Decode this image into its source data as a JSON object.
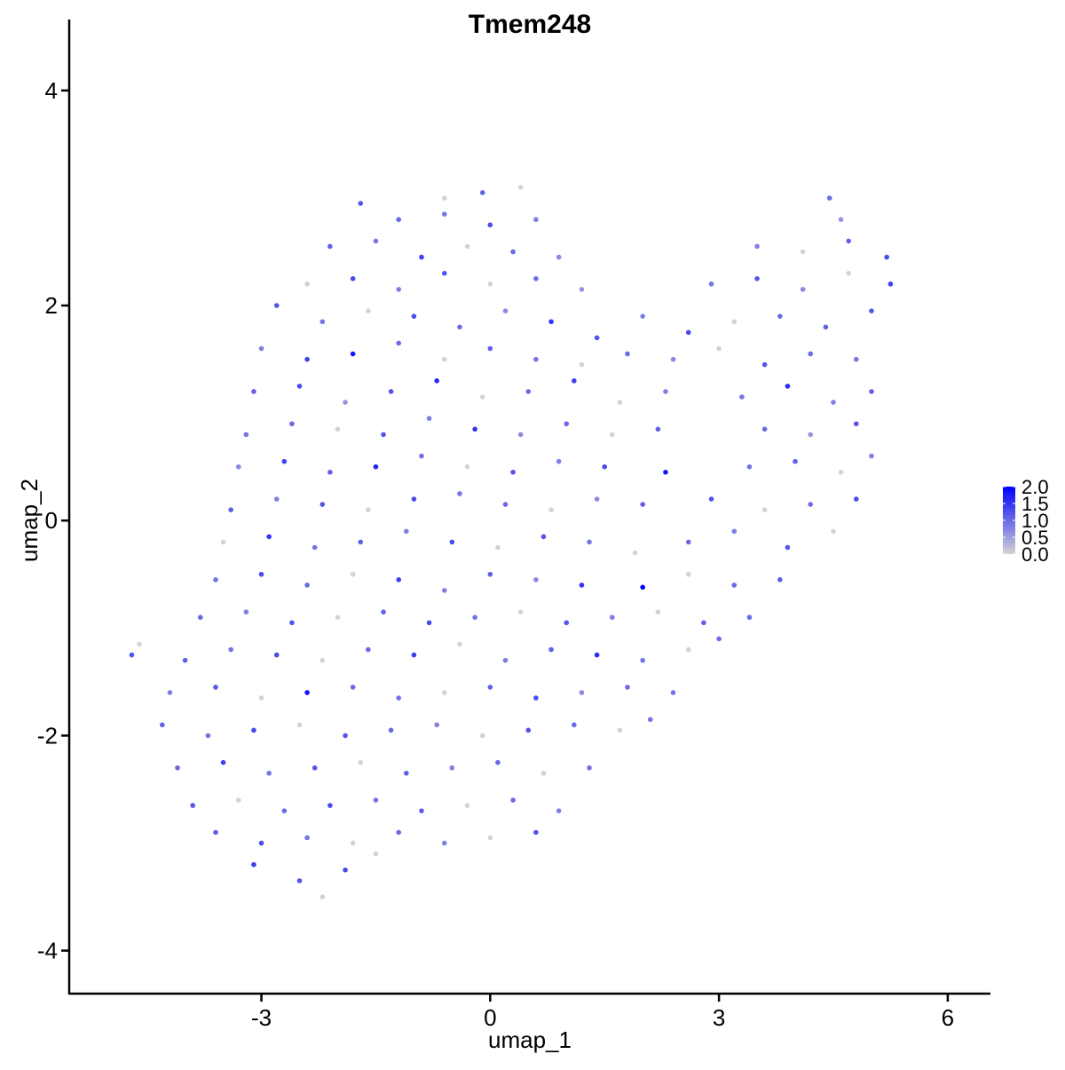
{
  "chart_data": {
    "type": "scatter",
    "title": "Tmem248",
    "xlabel": "umap_1",
    "ylabel": "umap_2",
    "xlim": [
      -5.52,
      6.56
    ],
    "ylim": [
      -4.4,
      4.66
    ],
    "xticks": [
      -3,
      0,
      3,
      6
    ],
    "yticks": [
      -4,
      -2,
      0,
      2,
      4
    ],
    "xtick_labels": [
      "-3",
      "0",
      "3",
      "6"
    ],
    "ytick_labels": [
      "-4",
      "-2",
      "0",
      "2",
      "4"
    ],
    "grid": false,
    "legend": {
      "placement": "right",
      "type": "colorbar",
      "min": 0,
      "max": 2,
      "tick_labels": [
        "2.0",
        "1.5",
        "1.0",
        "0.5",
        "0.0"
      ],
      "tick_values": [
        2.0,
        1.5,
        1.0,
        0.5,
        0.0
      ]
    },
    "colors": {
      "low": "#d3d3d3",
      "high": "#0000ff"
    },
    "point_fields": [
      "umap_1",
      "umap_2",
      "expression"
    ],
    "points": [
      [
        -0.6,
        3.0,
        0
      ],
      [
        -0.1,
        3.05,
        1.1
      ],
      [
        0.4,
        3.1,
        0
      ],
      [
        -1.7,
        2.95,
        1.2
      ],
      [
        -1.2,
        2.8,
        1.0
      ],
      [
        -0.6,
        2.85,
        0.9
      ],
      [
        0.0,
        2.75,
        1.3
      ],
      [
        0.6,
        2.8,
        0.8
      ],
      [
        4.45,
        3.0,
        1.0
      ],
      [
        4.6,
        2.8,
        0.6
      ],
      [
        -2.1,
        2.55,
        1.1
      ],
      [
        -1.5,
        2.6,
        0.9
      ],
      [
        -0.9,
        2.45,
        1.4
      ],
      [
        -0.3,
        2.55,
        0
      ],
      [
        0.3,
        2.5,
        1.0
      ],
      [
        0.9,
        2.45,
        0.7
      ],
      [
        3.5,
        2.55,
        0.8
      ],
      [
        4.1,
        2.5,
        0
      ],
      [
        4.7,
        2.6,
        1.1
      ],
      [
        5.2,
        2.45,
        1.3
      ],
      [
        -2.4,
        2.2,
        0
      ],
      [
        -1.8,
        2.25,
        1.3
      ],
      [
        -1.2,
        2.15,
        0.8
      ],
      [
        -0.6,
        2.3,
        1.2
      ],
      [
        0.0,
        2.2,
        0
      ],
      [
        0.6,
        2.25,
        1.0
      ],
      [
        1.2,
        2.15,
        0.6
      ],
      [
        2.9,
        2.2,
        0.9
      ],
      [
        3.5,
        2.25,
        1.2
      ],
      [
        4.1,
        2.15,
        0.7
      ],
      [
        4.7,
        2.3,
        0
      ],
      [
        5.25,
        2.2,
        1.4
      ],
      [
        -2.8,
        2.0,
        1.2
      ],
      [
        -2.2,
        1.85,
        0.9
      ],
      [
        -1.6,
        1.95,
        0
      ],
      [
        -1.0,
        1.9,
        1.3
      ],
      [
        -0.4,
        1.8,
        1.0
      ],
      [
        0.2,
        1.95,
        0.7
      ],
      [
        0.8,
        1.85,
        1.5
      ],
      [
        1.4,
        1.7,
        1.2
      ],
      [
        2.0,
        1.9,
        0.8
      ],
      [
        2.6,
        1.75,
        1.3
      ],
      [
        3.2,
        1.85,
        0
      ],
      [
        3.8,
        1.9,
        1.0
      ],
      [
        4.4,
        1.8,
        1.1
      ],
      [
        5.0,
        1.95,
        1.2
      ],
      [
        -3.0,
        1.6,
        0.8
      ],
      [
        -2.4,
        1.5,
        1.4
      ],
      [
        -1.8,
        1.55,
        1.8
      ],
      [
        -1.2,
        1.65,
        1.0
      ],
      [
        -0.6,
        1.5,
        0
      ],
      [
        0.0,
        1.6,
        1.1
      ],
      [
        0.6,
        1.5,
        0.9
      ],
      [
        1.2,
        1.45,
        0
      ],
      [
        1.8,
        1.55,
        1.0
      ],
      [
        2.4,
        1.5,
        0.7
      ],
      [
        3.0,
        1.6,
        0
      ],
      [
        3.6,
        1.45,
        1.2
      ],
      [
        4.2,
        1.55,
        1.0
      ],
      [
        4.8,
        1.5,
        0.9
      ],
      [
        -3.1,
        1.2,
        1.1
      ],
      [
        -2.5,
        1.25,
        1.3
      ],
      [
        -1.9,
        1.1,
        0.6
      ],
      [
        -1.3,
        1.2,
        1.2
      ],
      [
        -0.7,
        1.3,
        1.6
      ],
      [
        -0.1,
        1.15,
        0
      ],
      [
        0.5,
        1.2,
        1.0
      ],
      [
        1.1,
        1.3,
        1.4
      ],
      [
        1.7,
        1.1,
        0
      ],
      [
        2.3,
        1.2,
        0.8
      ],
      [
        3.3,
        1.15,
        0.9
      ],
      [
        3.9,
        1.25,
        1.6
      ],
      [
        4.5,
        1.1,
        0.8
      ],
      [
        5.0,
        1.2,
        1.1
      ],
      [
        -3.2,
        0.8,
        0.9
      ],
      [
        -2.6,
        0.9,
        1.0
      ],
      [
        -2.0,
        0.85,
        0
      ],
      [
        -1.4,
        0.8,
        1.2
      ],
      [
        -0.8,
        0.95,
        0.8
      ],
      [
        -0.2,
        0.85,
        1.5
      ],
      [
        0.4,
        0.8,
        0.7
      ],
      [
        1.0,
        0.9,
        1.0
      ],
      [
        1.6,
        0.8,
        0
      ],
      [
        2.2,
        0.85,
        1.1
      ],
      [
        3.6,
        0.85,
        1.0
      ],
      [
        4.2,
        0.8,
        0.6
      ],
      [
        4.8,
        0.9,
        1.2
      ],
      [
        -3.3,
        0.5,
        0.7
      ],
      [
        -2.7,
        0.55,
        1.4
      ],
      [
        -2.1,
        0.45,
        1.1
      ],
      [
        -1.5,
        0.5,
        1.7
      ],
      [
        -0.9,
        0.6,
        0.9
      ],
      [
        -0.3,
        0.5,
        0
      ],
      [
        0.3,
        0.45,
        1.2
      ],
      [
        0.9,
        0.55,
        0.8
      ],
      [
        1.5,
        0.5,
        1.3
      ],
      [
        2.3,
        0.45,
        1.8
      ],
      [
        3.4,
        0.5,
        0.9
      ],
      [
        4.0,
        0.55,
        1.1
      ],
      [
        4.6,
        0.45,
        0
      ],
      [
        5.0,
        0.6,
        0.8
      ],
      [
        -3.4,
        0.1,
        1.1
      ],
      [
        -2.8,
        0.2,
        0.8
      ],
      [
        -2.2,
        0.15,
        1.2
      ],
      [
        -1.6,
        0.1,
        0
      ],
      [
        -1.0,
        0.2,
        1.3
      ],
      [
        -0.4,
        0.25,
        0.9
      ],
      [
        0.2,
        0.15,
        1.0
      ],
      [
        0.8,
        0.1,
        0
      ],
      [
        1.4,
        0.2,
        0.7
      ],
      [
        2.0,
        0.15,
        1.1
      ],
      [
        2.9,
        0.2,
        1.2
      ],
      [
        3.6,
        0.1,
        0
      ],
      [
        4.2,
        0.15,
        1.0
      ],
      [
        4.8,
        0.2,
        1.3
      ],
      [
        -3.5,
        -0.2,
        0
      ],
      [
        -2.9,
        -0.15,
        1.5
      ],
      [
        -2.3,
        -0.25,
        0.9
      ],
      [
        -1.7,
        -0.2,
        1.1
      ],
      [
        -1.1,
        -0.1,
        0.8
      ],
      [
        -0.5,
        -0.2,
        1.3
      ],
      [
        0.1,
        -0.25,
        0
      ],
      [
        0.7,
        -0.15,
        1.2
      ],
      [
        1.3,
        -0.2,
        0.9
      ],
      [
        1.9,
        -0.3,
        0
      ],
      [
        2.6,
        -0.2,
        1.0
      ],
      [
        3.2,
        -0.1,
        0.8
      ],
      [
        3.9,
        -0.25,
        1.2
      ],
      [
        4.5,
        -0.1,
        0
      ],
      [
        -3.6,
        -0.55,
        0.9
      ],
      [
        -3.0,
        -0.5,
        1.3
      ],
      [
        -2.4,
        -0.6,
        1.0
      ],
      [
        -1.8,
        -0.5,
        0
      ],
      [
        -1.2,
        -0.55,
        1.4
      ],
      [
        -0.6,
        -0.65,
        0.8
      ],
      [
        0.0,
        -0.5,
        1.1
      ],
      [
        0.6,
        -0.55,
        0.7
      ],
      [
        1.2,
        -0.6,
        1.5
      ],
      [
        2.0,
        -0.62,
        2.0
      ],
      [
        2.6,
        -0.5,
        0
      ],
      [
        3.2,
        -0.6,
        1.0
      ],
      [
        3.8,
        -0.55,
        1.1
      ],
      [
        -3.8,
        -0.9,
        1.0
      ],
      [
        -3.2,
        -0.85,
        0.8
      ],
      [
        -2.6,
        -0.95,
        1.2
      ],
      [
        -2.0,
        -0.9,
        0
      ],
      [
        -1.4,
        -0.85,
        1.1
      ],
      [
        -0.8,
        -0.95,
        1.3
      ],
      [
        -0.2,
        -0.9,
        0.9
      ],
      [
        0.4,
        -0.85,
        0
      ],
      [
        1.0,
        -0.95,
        1.2
      ],
      [
        1.6,
        -0.9,
        0.8
      ],
      [
        2.2,
        -0.85,
        0
      ],
      [
        2.8,
        -0.95,
        1.1
      ],
      [
        3.4,
        -0.9,
        1.0
      ],
      [
        -4.7,
        -1.25,
        1.2
      ],
      [
        -4.6,
        -1.15,
        0
      ],
      [
        -4.0,
        -1.3,
        1.1
      ],
      [
        -3.4,
        -1.2,
        0.9
      ],
      [
        -2.8,
        -1.25,
        1.3
      ],
      [
        -2.2,
        -1.3,
        0
      ],
      [
        -1.6,
        -1.2,
        1.0
      ],
      [
        -1.0,
        -1.25,
        1.4
      ],
      [
        -0.4,
        -1.15,
        0
      ],
      [
        0.2,
        -1.3,
        0.8
      ],
      [
        0.8,
        -1.2,
        1.1
      ],
      [
        1.4,
        -1.25,
        1.6
      ],
      [
        2.0,
        -1.3,
        0.9
      ],
      [
        2.6,
        -1.2,
        0
      ],
      [
        3.0,
        -1.1,
        1.0
      ],
      [
        -4.2,
        -1.6,
        0.8
      ],
      [
        -3.6,
        -1.55,
        1.2
      ],
      [
        -3.0,
        -1.65,
        0
      ],
      [
        -2.4,
        -1.6,
        1.8
      ],
      [
        -1.8,
        -1.55,
        1.0
      ],
      [
        -1.2,
        -1.65,
        0.9
      ],
      [
        -0.6,
        -1.6,
        0
      ],
      [
        0.0,
        -1.55,
        1.1
      ],
      [
        0.6,
        -1.65,
        1.3
      ],
      [
        1.2,
        -1.6,
        0.7
      ],
      [
        1.8,
        -1.55,
        1.0
      ],
      [
        2.4,
        -1.6,
        0.9
      ],
      [
        -4.3,
        -1.9,
        1.1
      ],
      [
        -3.7,
        -2.0,
        0.9
      ],
      [
        -3.1,
        -1.95,
        1.3
      ],
      [
        -2.5,
        -1.9,
        0
      ],
      [
        -1.9,
        -2.0,
        1.2
      ],
      [
        -1.3,
        -1.95,
        1.0
      ],
      [
        -0.7,
        -1.9,
        0.8
      ],
      [
        -0.1,
        -2.0,
        0
      ],
      [
        0.5,
        -1.95,
        1.2
      ],
      [
        1.1,
        -1.9,
        1.0
      ],
      [
        1.7,
        -1.95,
        0
      ],
      [
        2.1,
        -1.85,
        0.9
      ],
      [
        -4.1,
        -2.3,
        1.0
      ],
      [
        -3.5,
        -2.25,
        1.4
      ],
      [
        -2.9,
        -2.35,
        0.9
      ],
      [
        -2.3,
        -2.3,
        1.2
      ],
      [
        -1.7,
        -2.25,
        0
      ],
      [
        -1.1,
        -2.35,
        1.1
      ],
      [
        -0.5,
        -2.3,
        0.8
      ],
      [
        0.1,
        -2.25,
        1.0
      ],
      [
        0.7,
        -2.35,
        0
      ],
      [
        1.3,
        -2.3,
        0.9
      ],
      [
        -3.9,
        -2.65,
        1.2
      ],
      [
        -3.3,
        -2.6,
        0
      ],
      [
        -2.7,
        -2.7,
        1.0
      ],
      [
        -2.1,
        -2.65,
        1.3
      ],
      [
        -1.5,
        -2.6,
        0.9
      ],
      [
        -0.9,
        -2.7,
        1.1
      ],
      [
        -0.3,
        -2.65,
        0
      ],
      [
        0.3,
        -2.6,
        1.0
      ],
      [
        0.9,
        -2.7,
        0.8
      ],
      [
        -3.6,
        -2.9,
        1.1
      ],
      [
        -3.0,
        -3.0,
        1.3
      ],
      [
        -2.4,
        -2.95,
        0.9
      ],
      [
        -1.8,
        -3.0,
        0
      ],
      [
        -1.2,
        -2.9,
        1.0
      ],
      [
        -0.6,
        -3.0,
        0.8
      ],
      [
        0.0,
        -2.95,
        0
      ],
      [
        0.6,
        -2.9,
        1.2
      ],
      [
        -3.1,
        -3.2,
        1.4
      ],
      [
        -2.5,
        -3.35,
        1.2
      ],
      [
        -2.2,
        -3.5,
        0
      ],
      [
        -1.9,
        -3.25,
        1.3
      ],
      [
        -1.5,
        -3.1,
        0
      ]
    ]
  }
}
